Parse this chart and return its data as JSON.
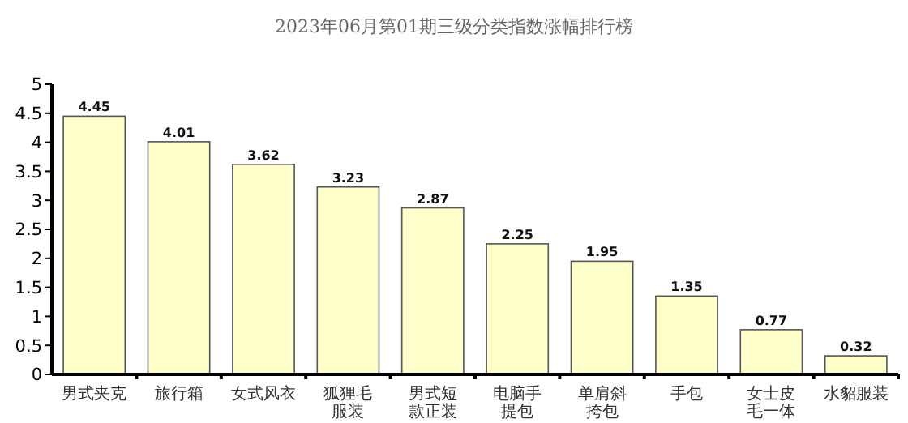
{
  "chart_data": {
    "type": "bar",
    "title": "2023年06月第01期三级分类指数涨幅排行榜",
    "categories": [
      "男式夹克",
      "旅行箱",
      "女式风衣",
      "狐狸毛服装",
      "男式短款正装",
      "电脑手提包",
      "单肩斜挎包",
      "手包",
      "女士皮毛一体",
      "水貂服装"
    ],
    "values": [
      4.45,
      4.01,
      3.62,
      3.23,
      2.87,
      2.25,
      1.95,
      1.35,
      0.77,
      0.32
    ],
    "color": "#ffffcc",
    "ylim": [
      0,
      5
    ],
    "yticks": [
      0,
      0.5,
      1,
      1.5,
      2,
      2.5,
      3,
      3.5,
      4,
      4.5,
      5
    ],
    "data_labels": true,
    "grid": false
  }
}
